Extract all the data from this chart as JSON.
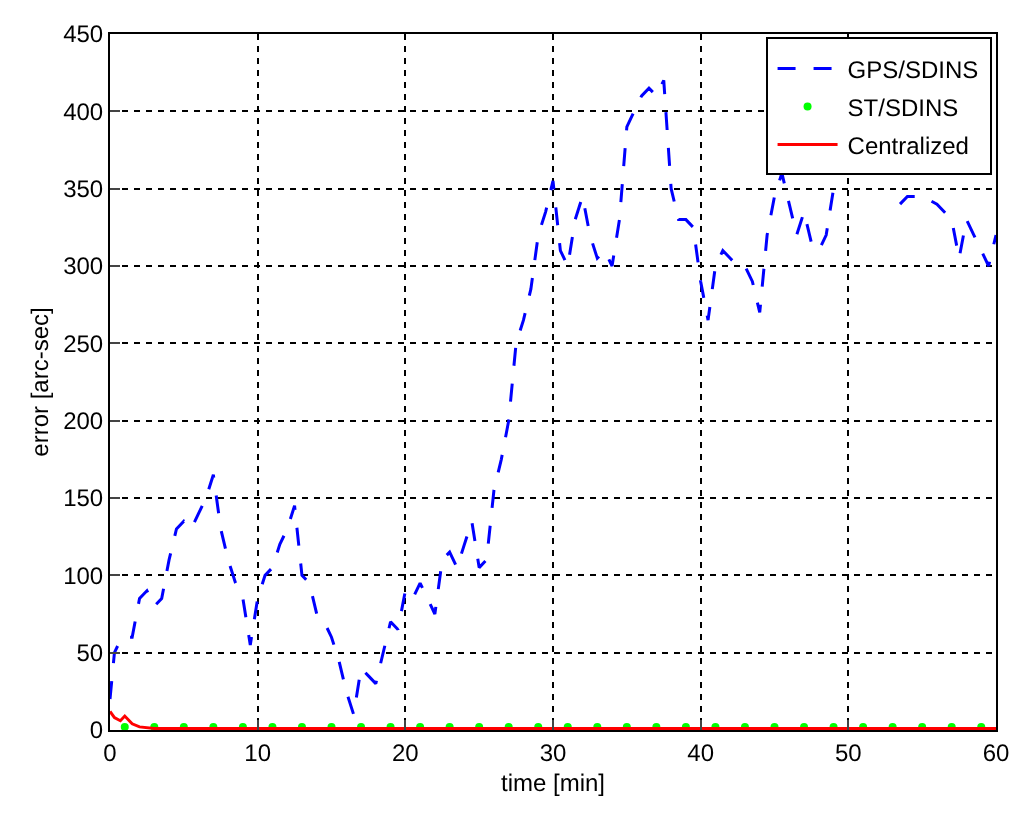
{
  "chart_data": {
    "type": "line",
    "xlabel": "time [min]",
    "ylabel": "error [arc-sec]",
    "xlim": [
      0,
      60
    ],
    "ylim": [
      0,
      450
    ],
    "xticks": [
      0,
      10,
      20,
      30,
      40,
      50,
      60
    ],
    "yticks": [
      0,
      50,
      100,
      150,
      200,
      250,
      300,
      350,
      400,
      450
    ],
    "grid": true,
    "legend": "top right",
    "series": [
      {
        "name": "GPS/SDINS",
        "color": "#0000ff",
        "line_style": "dashed",
        "marker": "none",
        "x": [
          0,
          0.3,
          0.8,
          1.5,
          2,
          2.5,
          3,
          3.5,
          4,
          4.5,
          5,
          5.5,
          6,
          6.5,
          7,
          7.5,
          8,
          8.5,
          9,
          9.5,
          10,
          10.5,
          11,
          11.5,
          12,
          12.5,
          13,
          13.5,
          14,
          14.5,
          15,
          15.5,
          16,
          16.5,
          17,
          17.5,
          18,
          19,
          19.5,
          20,
          20.5,
          21,
          22,
          22.5,
          23,
          23.5,
          24,
          24.5,
          25,
          25.5,
          26,
          26.5,
          27,
          27.5,
          28,
          28.5,
          29,
          29.5,
          30,
          30.5,
          31,
          31.5,
          32,
          32.5,
          33,
          33.5,
          34,
          34.5,
          35,
          35.5,
          36,
          36.5,
          37,
          37.5,
          38,
          38.5,
          39,
          39.5,
          40,
          40.5,
          41,
          41.5,
          42,
          42.5,
          43,
          43.5,
          44,
          44.5,
          45,
          45.5,
          46,
          46.5,
          47,
          47.5,
          48,
          48.5,
          49,
          49.5,
          50,
          51,
          52,
          53,
          53.5,
          54,
          55,
          56,
          57,
          57.5,
          58,
          58.5,
          59,
          59.5,
          60
        ],
        "values": [
          20,
          50,
          60,
          60,
          85,
          90,
          80,
          85,
          110,
          130,
          135,
          130,
          140,
          150,
          165,
          130,
          110,
          95,
          85,
          55,
          85,
          100,
          105,
          120,
          130,
          145,
          100,
          95,
          75,
          70,
          60,
          45,
          25,
          10,
          40,
          35,
          30,
          70,
          65,
          90,
          85,
          95,
          75,
          110,
          115,
          105,
          120,
          135,
          105,
          110,
          155,
          175,
          200,
          250,
          265,
          285,
          320,
          335,
          355,
          310,
          300,
          330,
          345,
          320,
          305,
          310,
          300,
          330,
          390,
          400,
          410,
          415,
          410,
          420,
          350,
          330,
          330,
          325,
          290,
          265,
          300,
          310,
          305,
          300,
          300,
          290,
          270,
          320,
          345,
          360,
          340,
          320,
          335,
          315,
          310,
          320,
          350,
          null,
          null,
          null,
          null,
          null,
          340,
          345,
          345,
          340,
          330,
          305,
          330,
          320,
          310,
          300,
          320
        ]
      },
      {
        "name": "ST/SDINS",
        "type": "scatter",
        "color": "#00ff00",
        "marker": "circle",
        "x": [
          1,
          3,
          5,
          7,
          9,
          11,
          13,
          15,
          17,
          19,
          21,
          23,
          25,
          27,
          29,
          31,
          33,
          35,
          37,
          39,
          41,
          43,
          45,
          47,
          49,
          51,
          53,
          55,
          57,
          59
        ],
        "values": [
          2,
          2,
          2,
          2,
          2,
          2,
          2,
          2,
          2,
          2,
          2,
          2,
          2,
          2,
          2,
          2,
          2,
          2,
          2,
          2,
          2,
          2,
          2,
          2,
          2,
          2,
          2,
          2,
          2,
          2
        ]
      },
      {
        "name": "Centralized",
        "color": "#ff0000",
        "line_style": "solid",
        "marker": "none",
        "x": [
          0,
          0.3,
          0.7,
          1,
          1.5,
          2,
          3,
          5,
          60
        ],
        "values": [
          12,
          8,
          6,
          9,
          4,
          2,
          1,
          1,
          1
        ]
      }
    ]
  }
}
